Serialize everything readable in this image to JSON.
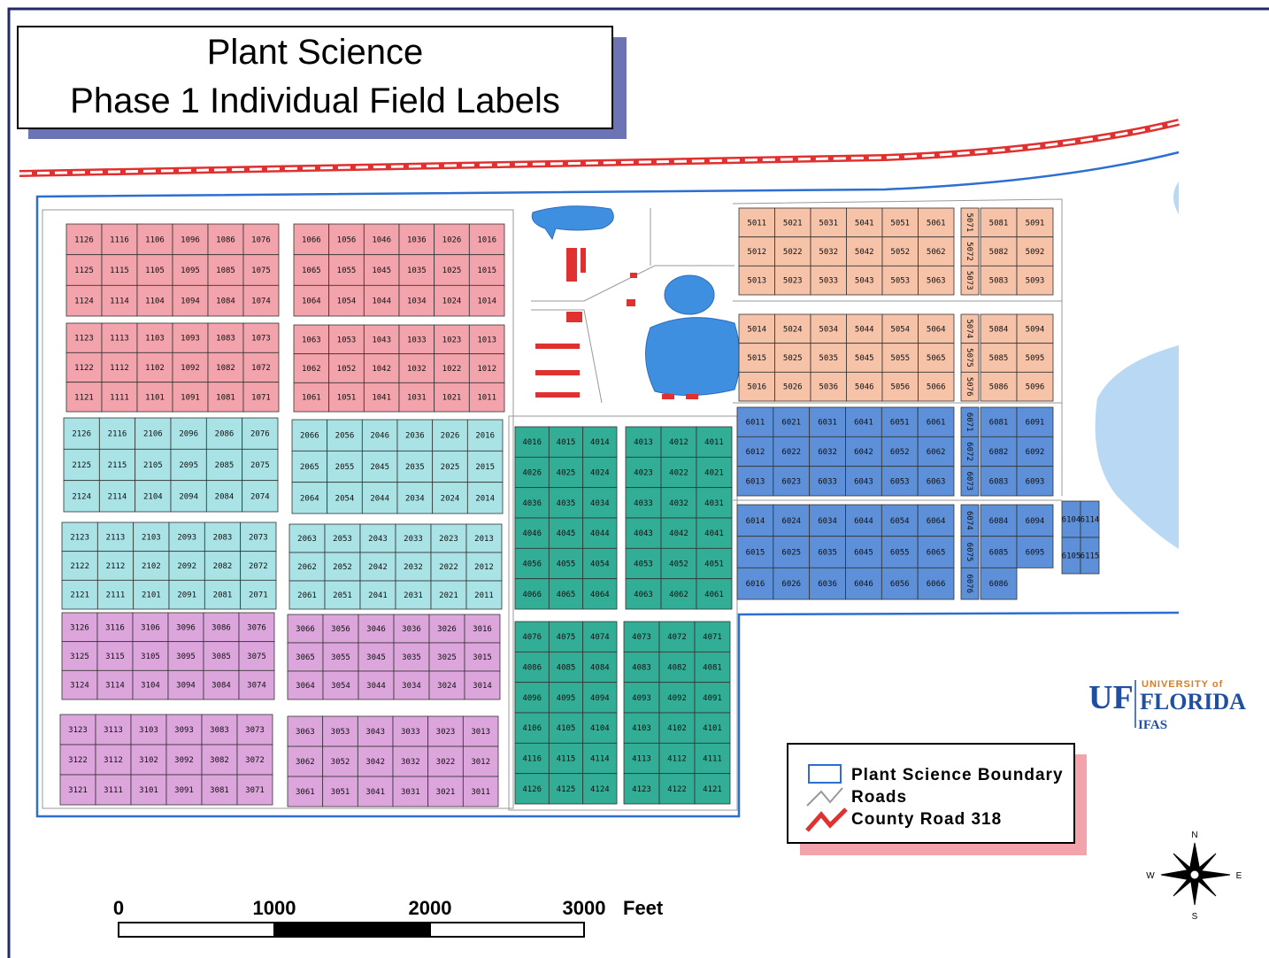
{
  "title": {
    "line1": "Plant Science",
    "line2": "Phase 1 Individual Field Labels"
  },
  "fields": {
    "sections": [
      {
        "color": "#f2a3ab",
        "blocks": [
          {
            "rows": [
              [
                "1126",
                "1116",
                "1106",
                "1096",
                "1086",
                "1076"
              ],
              [
                "1125",
                "1115",
                "1105",
                "1095",
                "1085",
                "1075"
              ],
              [
                "1124",
                "1114",
                "1104",
                "1094",
                "1084",
                "1074"
              ]
            ]
          },
          {
            "rows": [
              [
                "1066",
                "1056",
                "1046",
                "1036",
                "1026",
                "1016"
              ],
              [
                "1065",
                "1055",
                "1045",
                "1035",
                "1025",
                "1015"
              ],
              [
                "1064",
                "1054",
                "1044",
                "1034",
                "1024",
                "1014"
              ]
            ]
          },
          {
            "rows": [
              [
                "1123",
                "1113",
                "1103",
                "1093",
                "1083",
                "1073"
              ],
              [
                "1122",
                "1112",
                "1102",
                "1092",
                "1082",
                "1072"
              ],
              [
                "1121",
                "1111",
                "1101",
                "1091",
                "1081",
                "1071"
              ]
            ]
          },
          {
            "rows": [
              [
                "1063",
                "1053",
                "1043",
                "1033",
                "1023",
                "1013"
              ],
              [
                "1062",
                "1052",
                "1042",
                "1032",
                "1022",
                "1012"
              ],
              [
                "1061",
                "1051",
                "1041",
                "1031",
                "1021",
                "1011"
              ]
            ]
          }
        ]
      },
      {
        "color": "#a9e3e6",
        "blocks": [
          {
            "rows": [
              [
                "2126",
                "2116",
                "2106",
                "2096",
                "2086",
                "2076"
              ],
              [
                "2125",
                "2115",
                "2105",
                "2095",
                "2085",
                "2075"
              ],
              [
                "2124",
                "2114",
                "2104",
                "2094",
                "2084",
                "2074"
              ]
            ]
          },
          {
            "rows": [
              [
                "2066",
                "2056",
                "2046",
                "2036",
                "2026",
                "2016"
              ],
              [
                "2065",
                "2055",
                "2045",
                "2035",
                "2025",
                "2015"
              ],
              [
                "2064",
                "2054",
                "2044",
                "2034",
                "2024",
                "2014"
              ]
            ]
          },
          {
            "rows": [
              [
                "2123",
                "2113",
                "2103",
                "2093",
                "2083",
                "2073"
              ],
              [
                "2122",
                "2112",
                "2102",
                "2092",
                "2082",
                "2072"
              ],
              [
                "2121",
                "2111",
                "2101",
                "2091",
                "2081",
                "2071"
              ]
            ]
          },
          {
            "rows": [
              [
                "2063",
                "2053",
                "2043",
                "2033",
                "2023",
                "2013"
              ],
              [
                "2062",
                "2052",
                "2042",
                "2032",
                "2022",
                "2012"
              ],
              [
                "2061",
                "2051",
                "2041",
                "2031",
                "2021",
                "2011"
              ]
            ]
          }
        ]
      },
      {
        "color": "#dca6dc",
        "blocks": [
          {
            "rows": [
              [
                "3126",
                "3116",
                "3106",
                "3096",
                "3086",
                "3076"
              ],
              [
                "3125",
                "3115",
                "3105",
                "3095",
                "3085",
                "3075"
              ],
              [
                "3124",
                "3114",
                "3104",
                "3094",
                "3084",
                "3074"
              ]
            ]
          },
          {
            "rows": [
              [
                "3066",
                "3056",
                "3046",
                "3036",
                "3026",
                "3016"
              ],
              [
                "3065",
                "3055",
                "3045",
                "3035",
                "3025",
                "3015"
              ],
              [
                "3064",
                "3054",
                "3044",
                "3034",
                "3024",
                "3014"
              ]
            ]
          },
          {
            "rows": [
              [
                "3123",
                "3113",
                "3103",
                "3093",
                "3083",
                "3073"
              ],
              [
                "3122",
                "3112",
                "3102",
                "3092",
                "3082",
                "3072"
              ],
              [
                "3121",
                "3111",
                "3101",
                "3091",
                "3081",
                "3071"
              ]
            ]
          },
          {
            "rows": [
              [
                "3063",
                "3053",
                "3043",
                "3033",
                "3023",
                "3013"
              ],
              [
                "3062",
                "3052",
                "3042",
                "3032",
                "3022",
                "3012"
              ],
              [
                "3061",
                "3051",
                "3041",
                "3031",
                "3021",
                "3011"
              ]
            ]
          }
        ]
      },
      {
        "color": "#33ae96",
        "blocks": [
          {
            "rows": [
              [
                "4016",
                "4015",
                "4014"
              ],
              [
                "4026",
                "4025",
                "4024"
              ],
              [
                "4036",
                "4035",
                "4034"
              ],
              [
                "4046",
                "4045",
                "4044"
              ],
              [
                "4056",
                "4055",
                "4054"
              ],
              [
                "4066",
                "4065",
                "4064"
              ]
            ]
          },
          {
            "rows": [
              [
                "4013",
                "4012",
                "4011"
              ],
              [
                "4023",
                "4022",
                "4021"
              ],
              [
                "4033",
                "4032",
                "4031"
              ],
              [
                "4043",
                "4042",
                "4041"
              ],
              [
                "4053",
                "4052",
                "4051"
              ],
              [
                "4063",
                "4062",
                "4061"
              ]
            ]
          },
          {
            "rows": [
              [
                "4076",
                "4075",
                "4074"
              ],
              [
                "4086",
                "4085",
                "4084"
              ],
              [
                "4096",
                "4095",
                "4094"
              ],
              [
                "4106",
                "4105",
                "4104"
              ],
              [
                "4116",
                "4115",
                "4114"
              ],
              [
                "4126",
                "4125",
                "4124"
              ]
            ]
          },
          {
            "rows": [
              [
                "4073",
                "4072",
                "4071"
              ],
              [
                "4083",
                "4082",
                "4081"
              ],
              [
                "4093",
                "4092",
                "4091"
              ],
              [
                "4103",
                "4102",
                "4101"
              ],
              [
                "4113",
                "4112",
                "4111"
              ],
              [
                "4123",
                "4122",
                "4121"
              ]
            ]
          }
        ]
      },
      {
        "color": "#f6c2a8",
        "blocks": [
          {
            "rows": [
              [
                "5011",
                "5021",
                "5031",
                "5041",
                "5051",
                "5061"
              ],
              [
                "5012",
                "5022",
                "5032",
                "5042",
                "5052",
                "5062"
              ],
              [
                "5013",
                "5023",
                "5033",
                "5043",
                "5053",
                "5063"
              ]
            ]
          },
          {
            "rows": [
              [
                "5071"
              ],
              [
                "5072"
              ],
              [
                "5073"
              ]
            ]
          },
          {
            "rows": [
              [
                "5081",
                "5091"
              ],
              [
                "5082",
                "5092"
              ],
              [
                "5083",
                "5093"
              ]
            ]
          },
          {
            "rows": [
              [
                "5014",
                "5024",
                "5034",
                "5044",
                "5054",
                "5064"
              ],
              [
                "5015",
                "5025",
                "5035",
                "5045",
                "5055",
                "5065"
              ],
              [
                "5016",
                "5026",
                "5036",
                "5046",
                "5056",
                "5066"
              ]
            ]
          },
          {
            "rows": [
              [
                "5074"
              ],
              [
                "5075"
              ],
              [
                "5076"
              ]
            ]
          },
          {
            "rows": [
              [
                "5084",
                "5094"
              ],
              [
                "5085",
                "5095"
              ],
              [
                "5086",
                "5096"
              ]
            ]
          }
        ]
      },
      {
        "color": "#5d90d8",
        "blocks": [
          {
            "rows": [
              [
                "6011",
                "6021",
                "6031",
                "6041",
                "6051",
                "6061"
              ],
              [
                "6012",
                "6022",
                "6032",
                "6042",
                "6052",
                "6062"
              ],
              [
                "6013",
                "6023",
                "6033",
                "6043",
                "6053",
                "6063"
              ]
            ]
          },
          {
            "rows": [
              [
                "6071"
              ],
              [
                "6072"
              ],
              [
                "6073"
              ]
            ]
          },
          {
            "rows": [
              [
                "6081",
                "6091"
              ],
              [
                "6082",
                "6092"
              ],
              [
                "6083",
                "6093"
              ]
            ]
          },
          {
            "rows": [
              [
                "6014",
                "6024",
                "6034",
                "6044",
                "6054",
                "6064"
              ],
              [
                "6015",
                "6025",
                "6035",
                "6045",
                "6055",
                "6065"
              ],
              [
                "6016",
                "6026",
                "6036",
                "6046",
                "6056",
                "6066"
              ]
            ]
          },
          {
            "rows": [
              [
                "6074"
              ],
              [
                "6075"
              ],
              [
                "6076"
              ]
            ]
          },
          {
            "rows": [
              [
                "6084",
                "6094"
              ],
              [
                "6085",
                "6095"
              ],
              [
                "6086"
              ]
            ]
          },
          {
            "rows": [
              [
                "6104",
                "6114"
              ],
              [
                "6105",
                "6115"
              ]
            ]
          }
        ]
      }
    ]
  },
  "legend": {
    "items": [
      "Plant Science Boundary",
      "Roads",
      "County Road 318"
    ]
  },
  "scale_bar": {
    "ticks": [
      "0",
      "1000",
      "2000",
      "3000"
    ],
    "unit": "Feet"
  },
  "logo": {
    "uf": "UF",
    "university": "UNIVERSITY of",
    "florida": "FLORIDA",
    "ifas": "IFAS"
  },
  "compass": {
    "n": "N",
    "s": "S",
    "e": "E",
    "w": "W"
  }
}
